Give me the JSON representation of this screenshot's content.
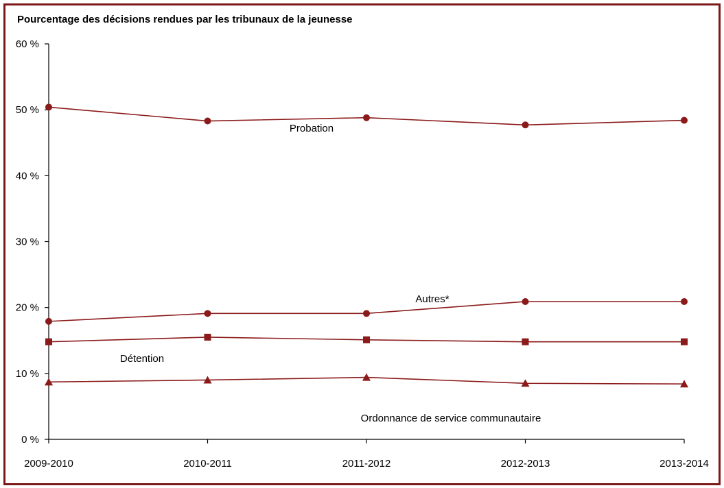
{
  "chart_data": {
    "type": "line",
    "title": "Pourcentage des décisions rendues par les tribunaux de la jeunesse",
    "xlabel": "",
    "ylabel": "",
    "categories": [
      "2009-2010",
      "2010-2011",
      "2011-2012",
      "2012-2013",
      "2013-2014"
    ],
    "y_ticks": [
      "0 %",
      "10 %",
      "20 %",
      "30 %",
      "40 %",
      "50 %",
      "60 %"
    ],
    "ylim": [
      0,
      60
    ],
    "grid": false,
    "legend": "none",
    "series": [
      {
        "name": "Probation",
        "marker": "circle",
        "values": [
          50.4,
          48.3,
          48.8,
          47.7,
          48.4
        ]
      },
      {
        "name": "Autres*",
        "marker": "circle",
        "values": [
          17.9,
          19.1,
          19.1,
          20.9,
          20.9
        ]
      },
      {
        "name": "Détention",
        "marker": "square",
        "values": [
          14.8,
          15.5,
          15.1,
          14.8,
          14.8
        ]
      },
      {
        "name": "Ordonnance de service communautaire",
        "marker": "triangle",
        "values": [
          8.7,
          9.0,
          9.4,
          8.5,
          8.4
        ]
      }
    ],
    "colors": {
      "series": "#8b1a1a",
      "axis": "#000000",
      "frame": "#7b1818"
    }
  }
}
